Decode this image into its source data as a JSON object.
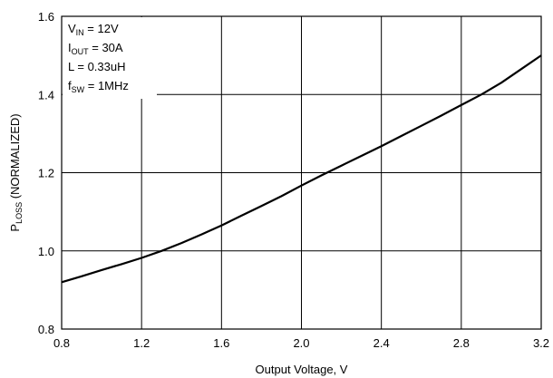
{
  "chart_data": {
    "type": "line",
    "xlabel": "Output Voltage, V",
    "ylabel": {
      "main": "P",
      "sub": "LOSS",
      "rest": " (NORMALIZED)"
    },
    "xlim": [
      0.8,
      3.2
    ],
    "ylim": [
      0.8,
      1.6
    ],
    "xticks": [
      0.8,
      1.2,
      1.6,
      2.0,
      2.4,
      2.8,
      3.2
    ],
    "xtick_labels": [
      "0.8",
      "1.2",
      "1.6",
      "2.0",
      "2.4",
      "2.8",
      "3.2"
    ],
    "yticks": [
      0.8,
      1.0,
      1.2,
      1.4,
      1.6
    ],
    "ytick_labels": [
      "0.8",
      "1.0",
      "1.2",
      "1.4",
      "1.6"
    ],
    "grid": true,
    "series": [
      {
        "color": "#000000",
        "x": [
          0.8,
          0.9,
          1.0,
          1.1,
          1.2,
          1.3,
          1.4,
          1.5,
          1.6,
          1.7,
          1.8,
          1.9,
          2.0,
          2.1,
          2.2,
          2.3,
          2.4,
          2.5,
          2.6,
          2.7,
          2.8,
          2.9,
          3.0,
          3.1,
          3.2
        ],
        "y": [
          0.92,
          0.935,
          0.951,
          0.966,
          0.982,
          1.0,
          1.02,
          1.042,
          1.065,
          1.09,
          1.115,
          1.14,
          1.167,
          1.193,
          1.218,
          1.243,
          1.268,
          1.294,
          1.32,
          1.346,
          1.373,
          1.4,
          1.43,
          1.465,
          1.5
        ]
      }
    ],
    "annotation": [
      {
        "main": "V",
        "sub": "IN",
        "rest": " = 12V"
      },
      {
        "main": "I",
        "sub": "OUT",
        "rest": " = 30A"
      },
      {
        "main": "L = 0.33uH",
        "sub": "",
        "rest": ""
      },
      {
        "main": "f",
        "sub": "SW",
        "rest": " = 1MHz"
      }
    ]
  }
}
